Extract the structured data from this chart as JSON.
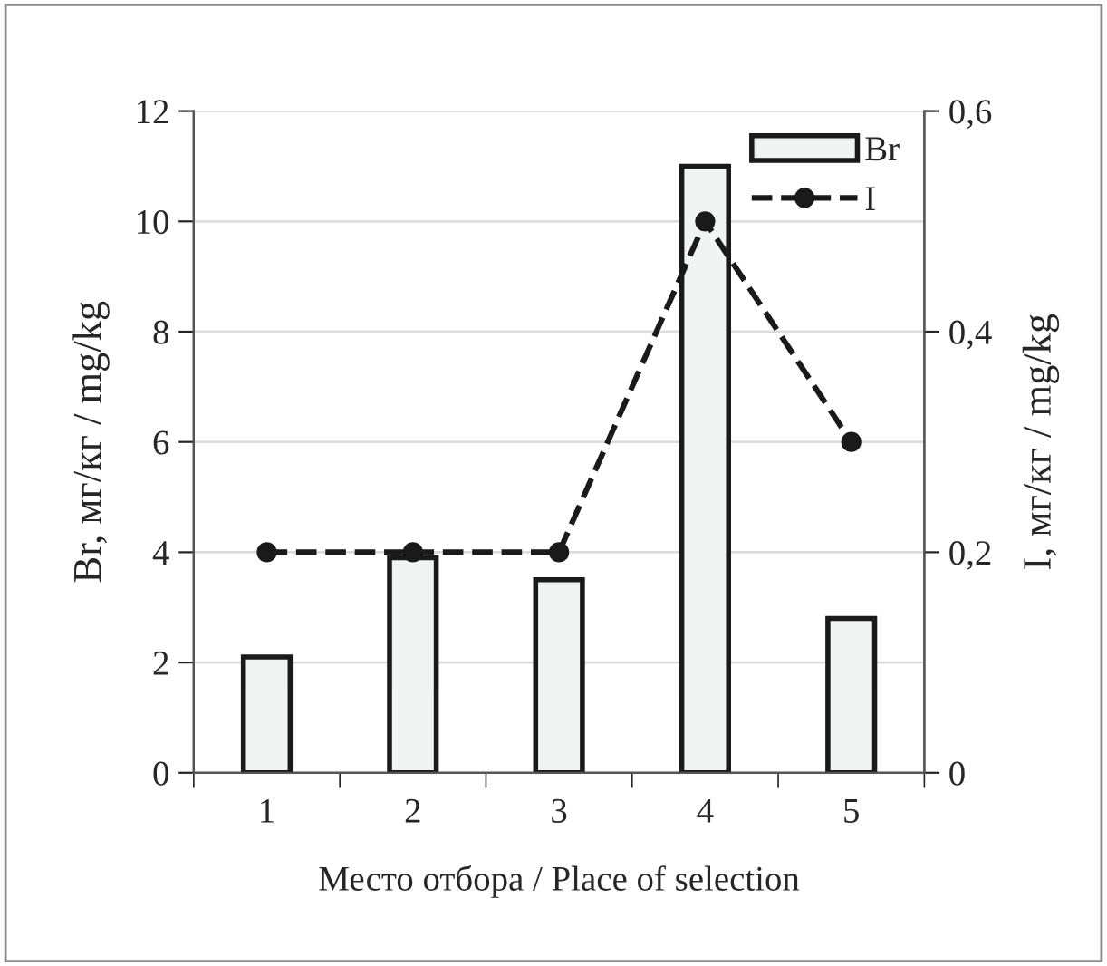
{
  "chart_data": {
    "type": "bar",
    "xlabel": "Место отбора / Place of selection",
    "ylabel": "Br, мг/кг / mg/kg",
    "y2label": "I, мг/кг / mg/kg",
    "categories": [
      "1",
      "2",
      "3",
      "4",
      "5"
    ],
    "series": [
      {
        "name": "Br",
        "color": "#f2f4f3",
        "values": [
          2.1,
          3.9,
          3.5,
          11.0,
          2.8
        ]
      },
      {
        "name": "I",
        "type": "line",
        "axis": "y2",
        "color": "#1a1a1a",
        "values": [
          0.2,
          0.2,
          0.2,
          0.5,
          0.3
        ],
        "marker": "circle",
        "line_style": "dashed"
      }
    ],
    "ylim": [
      0,
      12
    ],
    "yticks": [
      0,
      2,
      4,
      6,
      8,
      10,
      12
    ],
    "y2lim": [
      0,
      0.6
    ],
    "y2ticks": [
      0,
      {
        "value": 0.2,
        "label": "0,2"
      },
      {
        "value": 0.4,
        "label": "0,4"
      },
      {
        "value": 0.6,
        "label": "0,6"
      }
    ],
    "grid": "y",
    "legend": "top right"
  }
}
